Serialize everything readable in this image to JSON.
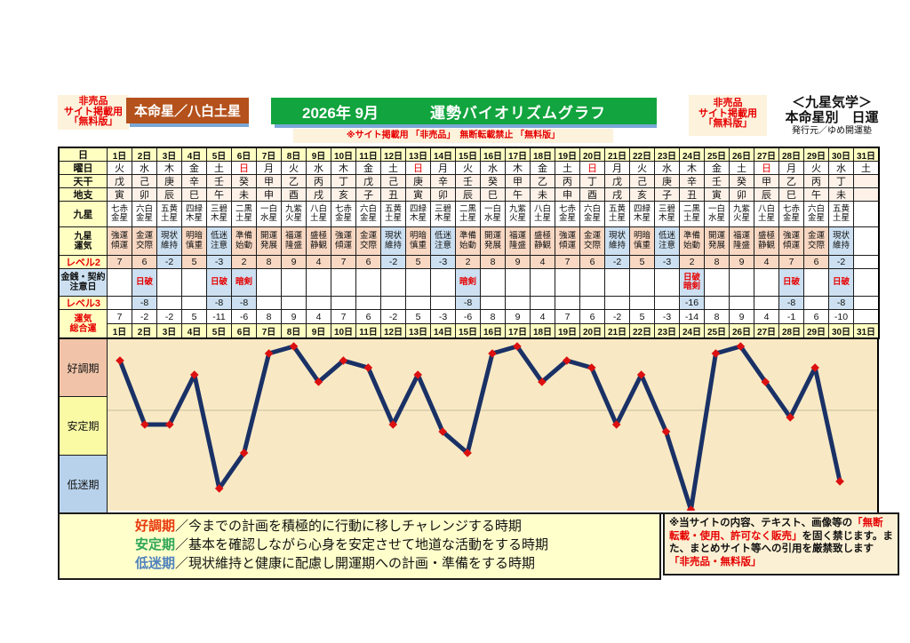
{
  "header": {
    "left_badge": [
      "非売品",
      "サイト掲載用",
      "「無料版」"
    ],
    "honmeisei": "本命星／八白土星",
    "title_month": "2026年 9月",
    "title_main": "運勢バイオリズムグラフ",
    "notice": "※サイト掲載用 「非売品」　無断転載禁止 「無料版」",
    "right_badge": [
      "非売品",
      "サイト掲載用",
      "「無料版」"
    ],
    "school": "＜九星気学＞",
    "subtitle": "本命星別　日運",
    "publisher": "発行元／ゆめ開運塾"
  },
  "table": {
    "row_labels": {
      "day": "日",
      "weekday": "曜日",
      "tenkan": "天干",
      "chishi": "地支",
      "kyusei": "九星",
      "unki": [
        "九星",
        "運気"
      ],
      "level2": "レベル2",
      "caution": [
        "金銭・契約",
        "注意日"
      ],
      "level3": "レベル3",
      "total": [
        "運気",
        "総合運"
      ]
    },
    "days": [
      "1日",
      "2日",
      "3日",
      "4日",
      "5日",
      "6日",
      "7日",
      "8日",
      "9日",
      "10日",
      "11日",
      "12日",
      "13日",
      "14日",
      "15日",
      "16日",
      "17日",
      "18日",
      "19日",
      "20日",
      "21日",
      "22日",
      "23日",
      "24日",
      "25日",
      "26日",
      "27日",
      "28日",
      "29日",
      "30日",
      "31日"
    ],
    "weekday": [
      "火",
      "水",
      "木",
      "金",
      "土",
      "日",
      "月",
      "火",
      "水",
      "木",
      "金",
      "土",
      "日",
      "月",
      "火",
      "水",
      "木",
      "金",
      "土",
      "日",
      "月",
      "火",
      "水",
      "木",
      "金",
      "土",
      "日",
      "月",
      "火",
      "水",
      "土"
    ],
    "sundays": [
      5,
      12,
      19,
      26
    ],
    "tenkan": [
      "戊",
      "己",
      "庚",
      "辛",
      "壬",
      "癸",
      "甲",
      "乙",
      "丙",
      "丁",
      "戊",
      "己",
      "庚",
      "辛",
      "壬",
      "癸",
      "甲",
      "乙",
      "丙",
      "丁",
      "戊",
      "己",
      "庚",
      "辛",
      "壬",
      "癸",
      "甲",
      "乙",
      "丙",
      "丁",
      ""
    ],
    "chishi": [
      "寅",
      "卯",
      "辰",
      "巳",
      "午",
      "未",
      "申",
      "酉",
      "戌",
      "亥",
      "子",
      "丑",
      "寅",
      "卯",
      "辰",
      "巳",
      "午",
      "未",
      "申",
      "酉",
      "戌",
      "亥",
      "子",
      "丑",
      "寅",
      "卯",
      "辰",
      "巳",
      "午",
      "未",
      ""
    ],
    "kyusei": [
      "七赤金星",
      "六白金星",
      "五黄土星",
      "四緑木星",
      "三碧木星",
      "二黒土星",
      "一白水星",
      "九紫火星",
      "八白土星",
      "七赤金星",
      "六白金星",
      "五黄土星",
      "四緑木星",
      "三碧木星",
      "二黒土星",
      "一白水星",
      "九紫火星",
      "八白土星",
      "七赤金星",
      "六白金星",
      "五黄土星",
      "四緑木星",
      "三碧木星",
      "二黒土星",
      "一白水星",
      "九紫火星",
      "八白土星",
      "七赤金星",
      "六白金星",
      "五黄土星",
      ""
    ],
    "unki": [
      "強運傾運",
      "金運交際",
      "現状維持",
      "明暗慎重",
      "低迷注意",
      "準備始動",
      "開運発展",
      "福運隆盛",
      "盛極静観",
      "強運傾運",
      "金運交際",
      "現状維持",
      "明暗慎重",
      "低迷注意",
      "準備始動",
      "開運発展",
      "福運隆盛",
      "盛極静観",
      "強運傾運",
      "金運交際",
      "現状維持",
      "明暗慎重",
      "低迷注意",
      "準備始動",
      "開運発展",
      "福運隆盛",
      "盛極静観",
      "強運傾運",
      "金運交際",
      "現状維持",
      ""
    ],
    "level2": [
      7,
      6,
      -2,
      5,
      -3,
      2,
      8,
      9,
      4,
      7,
      6,
      -2,
      5,
      -3,
      2,
      8,
      9,
      4,
      7,
      6,
      -2,
      5,
      -3,
      2,
      8,
      9,
      4,
      7,
      6,
      -2,
      null
    ],
    "caution": [
      "",
      "日破",
      "",
      "",
      "日破",
      "暗剣",
      "",
      "",
      "",
      "",
      "",
      "",
      "",
      "",
      "暗剣",
      "",
      "",
      "",
      "",
      "",
      "",
      "",
      "",
      "日破暗剣",
      "",
      "",
      "",
      "日破",
      "",
      "日破",
      ""
    ],
    "level3": [
      null,
      -8,
      null,
      null,
      -8,
      -8,
      null,
      null,
      null,
      null,
      null,
      null,
      null,
      null,
      -8,
      null,
      null,
      null,
      null,
      null,
      null,
      null,
      null,
      -16,
      null,
      null,
      null,
      -8,
      null,
      -8,
      null
    ],
    "total": [
      7,
      -2,
      -2,
      5,
      -11,
      -6,
      8,
      9,
      4,
      7,
      6,
      -2,
      5,
      -3,
      -6,
      8,
      9,
      4,
      7,
      6,
      -2,
      5,
      -3,
      -14,
      8,
      9,
      4,
      -1,
      6,
      -10,
      null
    ]
  },
  "chart_data": {
    "type": "line",
    "title": "運勢バイオリズムグラフ 2026年9月",
    "x": [
      1,
      2,
      3,
      4,
      5,
      6,
      7,
      8,
      9,
      10,
      11,
      12,
      13,
      14,
      15,
      16,
      17,
      18,
      19,
      20,
      21,
      22,
      23,
      24,
      25,
      26,
      27,
      28,
      29,
      30
    ],
    "values": [
      7,
      -2,
      -2,
      5,
      -11,
      -6,
      8,
      9,
      4,
      7,
      6,
      -2,
      5,
      -3,
      -6,
      8,
      9,
      4,
      7,
      6,
      -2,
      5,
      -3,
      -14,
      8,
      9,
      4,
      -1,
      6,
      -10
    ],
    "ylim": [
      -14,
      9
    ],
    "gridline_value": 0,
    "grid": "single horizontal line",
    "legend_position": "left bands",
    "line_color": "#1a3166",
    "marker_color": "#dc1010",
    "plot_bg": "#f8e9c4",
    "bands": [
      {
        "label": "好調期",
        "color": "#f1c4a9"
      },
      {
        "label": "安定期",
        "color": "#fafaa5"
      },
      {
        "label": "低迷期",
        "color": "#b8d2eb"
      }
    ]
  },
  "legend": {
    "items": [
      {
        "term": "好調期",
        "color": "#e8380d",
        "desc": "／今までの計画を積極的に行動に移しチャレンジする時期"
      },
      {
        "term": "安定期",
        "color": "#2fa557",
        "desc": "／基本を確認しながら心身を安定させて地道な活動をする時期"
      },
      {
        "term": "低迷期",
        "color": "#4f81bd",
        "desc": "／現状維持と健康に配慮し開運期への計画・準備をする時期"
      }
    ]
  },
  "rights": {
    "segments": [
      {
        "text": "※当サイトの内容、テキスト、画像等の",
        "red": false
      },
      {
        "text": "「無断転載・使用、許可なく販売」",
        "red": true
      },
      {
        "text": "を固く禁じます。また、まとめサイト等への引用を厳禁致します ",
        "red": false
      },
      {
        "text": "「非売品・無料版」",
        "red": true
      }
    ]
  }
}
